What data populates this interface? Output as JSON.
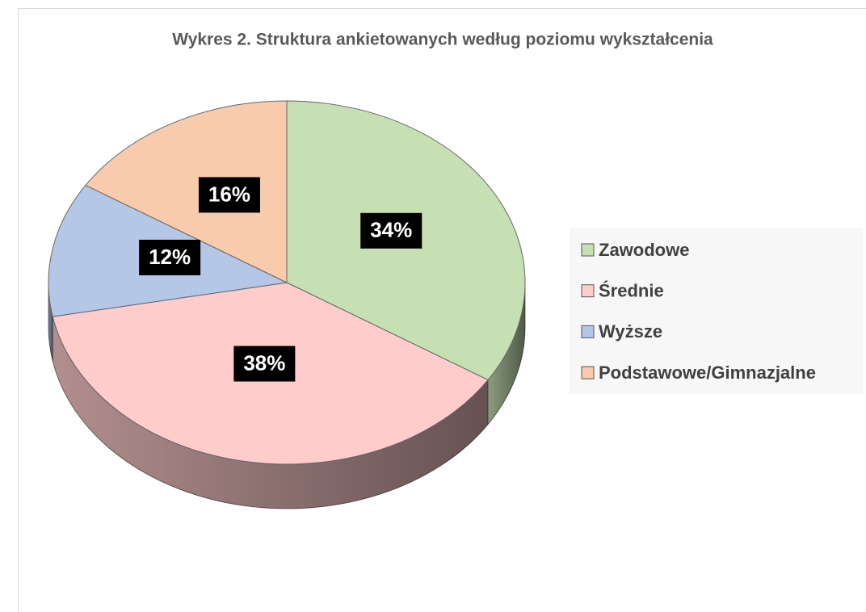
{
  "chart_data": {
    "type": "pie",
    "title": "Wykres 2. Struktura ankietowanych według poziomu wykształcenia",
    "categories": [
      "Zawodowe",
      "Średnie",
      "Wyższe",
      "Podstawowe/Gimnazjalne"
    ],
    "values": [
      34,
      38,
      12,
      16
    ],
    "value_labels": [
      "34%",
      "38%",
      "12%",
      "16%"
    ],
    "colors": [
      "#c6e0b4",
      "#ffcccc",
      "#b4c7e7",
      "#f8cbad"
    ],
    "legend": "right"
  }
}
